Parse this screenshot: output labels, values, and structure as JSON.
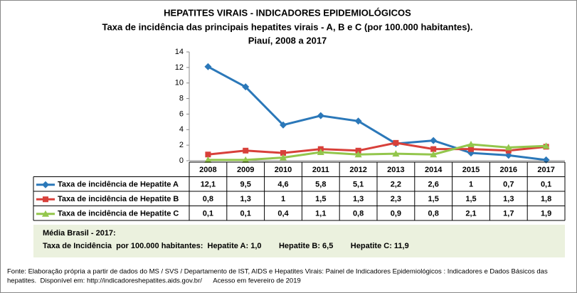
{
  "chart_data": {
    "type": "line",
    "title": "HEPATITES VIRAIS - INDICADORES EPIDEMIOLÓGICOS",
    "subtitle": [
      "Taxa de incidência das principais hepatites virais - A, B e C (por 100.000 habitantes).",
      "Piauí, 2008 a 2017"
    ],
    "categories": [
      "2008",
      "2009",
      "2010",
      "2011",
      "2012",
      "2013",
      "2014",
      "2015",
      "2016",
      "2017"
    ],
    "series": [
      {
        "name": "Taxa de incidência de Hepatite A",
        "color": "#2b78b9",
        "marker": "diamond",
        "values": [
          12.1,
          9.5,
          4.6,
          5.8,
          5.1,
          2.2,
          2.6,
          1,
          0.7,
          0.1
        ],
        "value_labels": [
          "12,1",
          "9,5",
          "4,6",
          "5,8",
          "5,1",
          "2,2",
          "2,6",
          "1",
          "0,7",
          "0,1"
        ]
      },
      {
        "name": "Taxa de incidência de Hepatite B",
        "color": "#d8403a",
        "marker": "square",
        "values": [
          0.8,
          1.3,
          1,
          1.5,
          1.3,
          2.3,
          1.5,
          1.5,
          1.3,
          1.8
        ],
        "value_labels": [
          "0,8",
          "1,3",
          "1",
          "1,5",
          "1,3",
          "2,3",
          "1,5",
          "1,5",
          "1,3",
          "1,8"
        ]
      },
      {
        "name": "Taxa de incidência de Hepatite C",
        "color": "#93c64c",
        "marker": "triangle",
        "values": [
          0.1,
          0.1,
          0.4,
          1.1,
          0.8,
          0.9,
          0.8,
          2.1,
          1.7,
          1.9
        ],
        "value_labels": [
          "0,1",
          "0,1",
          "0,4",
          "1,1",
          "0,8",
          "0,9",
          "0,8",
          "2,1",
          "1,7",
          "1,9"
        ]
      }
    ],
    "ylim": [
      0,
      14
    ],
    "yticks": [
      0,
      2,
      4,
      6,
      8,
      10,
      12,
      14
    ],
    "grid": false,
    "annotations": [
      "Média Brasil - 2017:",
      "Taxa de Incidência  por 100.000 habitantes:  Hepatite A: 1,0        Hepatite B: 6,5        Hepatite C: 11,9"
    ],
    "source": [
      "Fonte: Elaboração própria a partir de dados do MS / SVS / Departamento de IST, AIDS e Hepatites Virais:  Painel de Indicadores Epidemiológicos : Indicadores e Dados Básicos das",
      "hepatites.  Disponível em: http://indicadoreshepatites.aids.gov.br/      Acesso em fevereiro de 2019"
    ]
  }
}
